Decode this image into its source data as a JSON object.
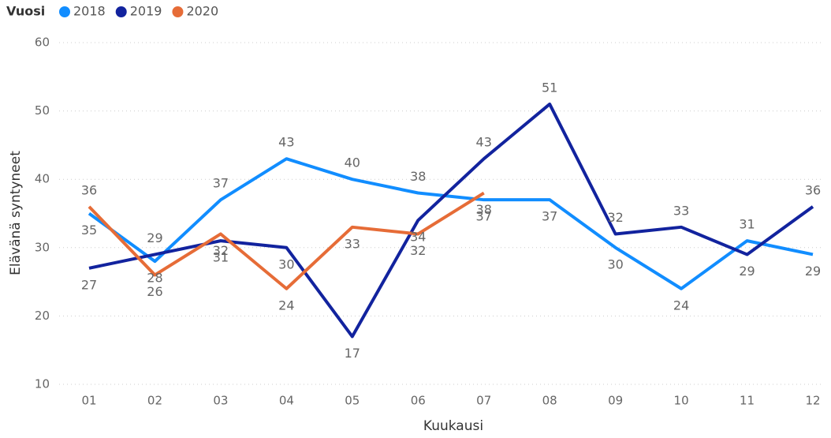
{
  "chart_data": {
    "type": "line",
    "legend_title": "Vuosi",
    "legend": "top-left",
    "x_label": "Kuukausi",
    "y_label": "Elävänä syntyneet",
    "categories": [
      "01",
      "02",
      "03",
      "04",
      "05",
      "06",
      "07",
      "08",
      "09",
      "10",
      "11",
      "12"
    ],
    "series": [
      {
        "name": "2018",
        "color": "#118DFF",
        "values": [
          35,
          28,
          37,
          43,
          40,
          38,
          37,
          37,
          30,
          24,
          31,
          29
        ]
      },
      {
        "name": "2019",
        "color": "#12239E",
        "values": [
          27,
          29,
          31,
          30,
          17,
          34,
          43,
          51,
          32,
          33,
          29,
          36
        ]
      },
      {
        "name": "2020",
        "color": "#E66C37",
        "values": [
          36,
          26,
          32,
          24,
          33,
          32,
          38,
          null,
          null,
          null,
          null,
          null
        ]
      }
    ],
    "ylim": [
      10,
      60
    ],
    "yticks": [
      10,
      20,
      30,
      40,
      50,
      60
    ],
    "grid": true
  }
}
